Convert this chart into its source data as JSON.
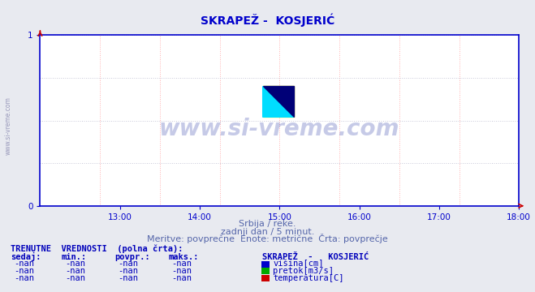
{
  "title": "SKRAPEŽ -  KOSJERIĆ",
  "title_color": "#0000cc",
  "title_fontsize": 10,
  "bg_color": "#e8eaf0",
  "plot_bg_color": "#ffffff",
  "ylim": [
    0,
    1
  ],
  "xtick_labels": [
    "13:00",
    "14:00",
    "15:00",
    "16:00",
    "17:00",
    "18:00"
  ],
  "grid_color_v": "#ffb0b0",
  "grid_color_h": "#c8c8d8",
  "axis_color": "#0000cc",
  "axis_arrow_color": "#cc0000",
  "watermark": "www.si-vreme.com",
  "watermark_color": "#3344aa",
  "watermark_alpha": 0.28,
  "watermark_fontsize": 20,
  "side_label": "www.si-vreme.com",
  "side_label_color": "#9999bb",
  "subtitle1": "Srbija / reke.",
  "subtitle2": "zadnji dan / 5 minut.",
  "subtitle3": "Meritve: povprečne  Enote: metrične  Črta: povprečje",
  "subtitle_color": "#5566aa",
  "subtitle_fontsize": 8,
  "table_title": "TRENUTNE  VREDNOSTI  (polna črta):",
  "table_title_color": "#0000bb",
  "table_title_fontsize": 7.5,
  "col_headers": [
    "sedaj:",
    "min.:",
    "povpr.:",
    "maks.:"
  ],
  "col_header_color": "#0000bb",
  "station_header": "SKRAPEŽ  -   KOSJERIĆ",
  "station_header_color": "#0000bb",
  "rows": [
    [
      "-nan",
      "-nan",
      "-nan",
      "-nan",
      "#0000cc",
      "višina[cm]"
    ],
    [
      "-nan",
      "-nan",
      "-nan",
      "-nan",
      "#00aa00",
      "pretok[m3/s]"
    ],
    [
      "-nan",
      "-nan",
      "-nan",
      "-nan",
      "#cc0000",
      "temperatura[C]"
    ]
  ],
  "row_color": "#0000bb",
  "table_fontsize": 7.5,
  "logo_yellow": "#ffff00",
  "logo_cyan": "#00ddff",
  "logo_darkblue": "#000077"
}
